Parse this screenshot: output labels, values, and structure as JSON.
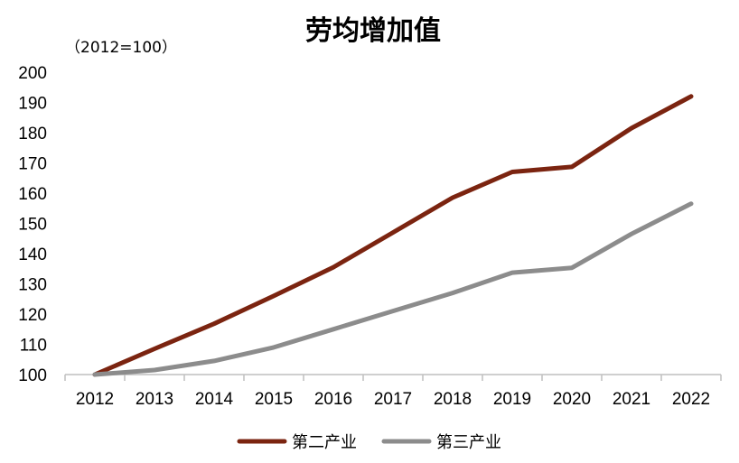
{
  "chart_data": {
    "type": "line",
    "title": "劳均增加值",
    "unit_label": "（2012=100）",
    "xlabel": "",
    "ylabel": "",
    "categories": [
      "2012",
      "2013",
      "2014",
      "2015",
      "2016",
      "2017",
      "2018",
      "2019",
      "2020",
      "2021",
      "2022"
    ],
    "ylim": [
      100,
      200
    ],
    "yticks": [
      100,
      110,
      120,
      130,
      140,
      150,
      160,
      170,
      180,
      190,
      200
    ],
    "grid": false,
    "legend_position": "bottom",
    "series": [
      {
        "name": "第二产业",
        "color": "#7B2410",
        "values": [
          100,
          108.5,
          116.8,
          126.0,
          135.5,
          147.0,
          158.5,
          167.0,
          168.7,
          181.5,
          192.0
        ]
      },
      {
        "name": "第三产业",
        "color": "#8C8C8C",
        "values": [
          100,
          101.5,
          104.5,
          109.0,
          115.0,
          121.0,
          127.0,
          133.7,
          135.3,
          146.5,
          156.5
        ]
      }
    ]
  }
}
